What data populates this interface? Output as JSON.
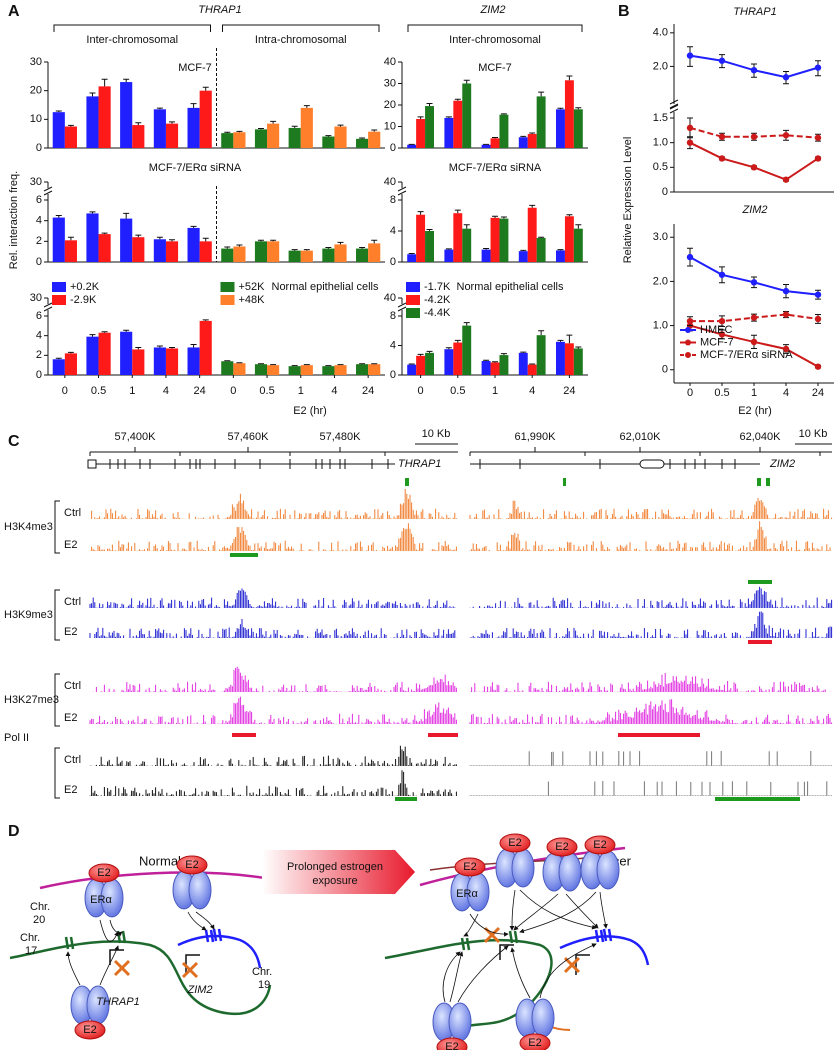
{
  "panel_labels": [
    "A",
    "B",
    "C",
    "D"
  ],
  "chart_data": [
    {
      "type": "bar",
      "header": "THRAP1",
      "groups": [
        "Inter-chromosomal",
        "Intra-chromosomal"
      ],
      "title": "MCF-7",
      "ylim": [
        0,
        30
      ],
      "yticks": [
        0,
        10,
        20,
        30
      ],
      "series": [
        {
          "color": "#1f1fff",
          "values": [
            12.5,
            18,
            23,
            13.5,
            14,
            null,
            null,
            null,
            null,
            null
          ],
          "errors": [
            0.4,
            1.2,
            1,
            0.4,
            1.5,
            null,
            null,
            null,
            null,
            null
          ]
        },
        {
          "color": "#ff1a1a",
          "values": [
            7.5,
            21.5,
            8,
            8.5,
            20,
            null,
            null,
            null,
            null,
            null
          ],
          "errors": [
            0.4,
            2.5,
            0.8,
            0.6,
            1.2,
            null,
            null,
            null,
            null,
            null
          ]
        },
        {
          "color": "#1e7a1e",
          "values": [
            null,
            null,
            null,
            null,
            null,
            5.2,
            6.5,
            7,
            4,
            3.2
          ],
          "errors": [
            null,
            null,
            null,
            null,
            null,
            0.3,
            0.3,
            0.6,
            0.3,
            0.3
          ]
        },
        {
          "color": "#ff7f2a",
          "values": [
            null,
            null,
            null,
            null,
            null,
            5.5,
            8.5,
            14,
            7.5,
            5.7
          ],
          "errors": [
            null,
            null,
            null,
            null,
            null,
            0.3,
            0.8,
            0.8,
            0.5,
            0.6
          ]
        }
      ]
    },
    {
      "type": "bar",
      "title": "MCF-7/ERα siRNA",
      "ylabel": "Rel. interaction freq.",
      "ylim": [
        0,
        6
      ],
      "yticks": [
        0,
        2,
        4,
        6
      ],
      "break_ticks": [
        30
      ],
      "series": [
        {
          "color": "#1f1fff",
          "values": [
            4.3,
            4.7,
            4.2,
            2.2,
            3.3,
            null,
            null,
            null,
            null,
            null
          ],
          "errors": [
            0.2,
            0.15,
            0.5,
            0.2,
            0.15,
            null,
            null,
            null,
            null,
            null
          ]
        },
        {
          "color": "#ff1a1a",
          "values": [
            2.1,
            2.7,
            2.4,
            2.0,
            2.0,
            null,
            null,
            null,
            null,
            null
          ],
          "errors": [
            0.3,
            0.1,
            0.2,
            0.15,
            0.3,
            null,
            null,
            null,
            null,
            null
          ]
        },
        {
          "color": "#1e7a1e",
          "values": [
            null,
            null,
            null,
            null,
            null,
            1.3,
            2.0,
            1.1,
            1.3,
            1.3
          ],
          "errors": [
            null,
            null,
            null,
            null,
            null,
            0.15,
            0.1,
            0.1,
            0.1,
            0.1
          ]
        },
        {
          "color": "#ff7f2a",
          "values": [
            null,
            null,
            null,
            null,
            null,
            1.5,
            2.0,
            1.1,
            1.7,
            1.8
          ],
          "errors": [
            null,
            null,
            null,
            null,
            null,
            0.15,
            0.1,
            0.1,
            0.2,
            0.3
          ]
        }
      ]
    },
    {
      "type": "bar",
      "title": "Normal epithelial cells",
      "xlabel": "E2 (hr)",
      "categories": [
        "0",
        "0.5",
        "1",
        "4",
        "24",
        "0",
        "0.5",
        "1",
        "4",
        "24"
      ],
      "ylim": [
        0,
        6
      ],
      "yticks": [
        0,
        2,
        4,
        6
      ],
      "break_ticks": [
        30
      ],
      "series": [
        {
          "name": "+0.2K",
          "color": "#1f1fff",
          "values": [
            1.6,
            3.9,
            4.4,
            2.8,
            2.8,
            null,
            null,
            null,
            null,
            null
          ],
          "errors": [
            0.1,
            0.2,
            0.15,
            0.15,
            0.3,
            null,
            null,
            null,
            null,
            null
          ]
        },
        {
          "name": "-2.9K",
          "color": "#ff1a1a",
          "values": [
            2.2,
            4.3,
            2.6,
            2.7,
            5.5,
            null,
            null,
            null,
            null,
            null
          ],
          "errors": [
            0.1,
            0.1,
            0.2,
            0.1,
            0.1,
            null,
            null,
            null,
            null,
            null
          ]
        },
        {
          "name": "+52K",
          "color": "#1e7a1e",
          "values": [
            null,
            null,
            null,
            null,
            null,
            1.4,
            1.1,
            0.9,
            0.9,
            1.1
          ],
          "errors": [
            null,
            null,
            null,
            null,
            null,
            0.05,
            0.05,
            0.05,
            0.05,
            0.05
          ]
        },
        {
          "name": "+48K",
          "color": "#ff7f2a",
          "values": [
            null,
            null,
            null,
            null,
            null,
            1.2,
            1.0,
            1.0,
            1.0,
            1.1
          ],
          "errors": [
            null,
            null,
            null,
            null,
            null,
            0.05,
            0.05,
            0.05,
            0.05,
            0.05
          ]
        }
      ]
    },
    {
      "type": "bar",
      "header": "ZIM2",
      "groups": [
        "Inter-chromosomal"
      ],
      "title": "MCF-7",
      "ylim": [
        0,
        40
      ],
      "yticks": [
        0,
        10,
        20,
        30,
        40
      ],
      "series": [
        {
          "color": "#1f1fff",
          "values": [
            1.5,
            14,
            1.5,
            5,
            18
          ],
          "errors": [
            0.2,
            0.5,
            0.2,
            0.4,
            0.5
          ]
        },
        {
          "color": "#ff1a1a",
          "values": [
            13.5,
            22,
            4.5,
            6.5,
            31.5
          ],
          "errors": [
            1,
            0.7,
            0.4,
            0.5,
            2
          ]
        },
        {
          "color": "#1e7a1e",
          "values": [
            19.5,
            30,
            15.5,
            24,
            18
          ],
          "errors": [
            1.2,
            1.5,
            0.4,
            2,
            0.7
          ]
        }
      ]
    },
    {
      "type": "bar",
      "title": "MCF-7/ERα siRNA",
      "ylim": [
        0,
        8
      ],
      "yticks": [
        0,
        4,
        8
      ],
      "break_ticks": [
        40
      ],
      "series": [
        {
          "color": "#1f1fff",
          "values": [
            1,
            1.6,
            1.6,
            1.4,
            1.5
          ],
          "errors": [
            0.1,
            0.1,
            0.15,
            0.1,
            0.1
          ]
        },
        {
          "color": "#ff1a1a",
          "values": [
            6.1,
            6.3,
            5.7,
            7.0,
            5.9
          ],
          "errors": [
            0.4,
            0.4,
            0.2,
            0.3,
            0.2
          ]
        },
        {
          "color": "#1e7a1e",
          "values": [
            4.0,
            4.3,
            5.6,
            3.1,
            4.3
          ],
          "errors": [
            0.2,
            0.5,
            0.2,
            0.1,
            0.5
          ]
        }
      ]
    },
    {
      "type": "bar",
      "title": "Normal epithelial cells",
      "categories": [
        "0",
        "0.5",
        "1",
        "4",
        "24"
      ],
      "ylim": [
        0,
        8
      ],
      "yticks": [
        0,
        4,
        8
      ],
      "break_ticks": [
        40
      ],
      "series": [
        {
          "name": "-1.7K",
          "color": "#1f1fff",
          "values": [
            1.4,
            3.5,
            1.9,
            3.0,
            4.5
          ],
          "errors": [
            0.1,
            0.2,
            0.1,
            0.1,
            0.2
          ]
        },
        {
          "name": "-4.2K",
          "color": "#ff1a1a",
          "values": [
            2.6,
            4.4,
            1.7,
            1.4,
            4.3
          ],
          "errors": [
            0.2,
            0.3,
            0.1,
            0.1,
            1.1
          ]
        },
        {
          "name": "-4.4K",
          "color": "#1e7a1e",
          "values": [
            3.0,
            6.7,
            2.7,
            5.4,
            3.6
          ],
          "errors": [
            0.2,
            0.4,
            0.2,
            0.6,
            0.2
          ]
        }
      ]
    },
    {
      "type": "line",
      "title": "THRAP1",
      "ylabel": "Relative Expression Level",
      "ylim": [
        0,
        1.5
      ],
      "yticks": [
        0,
        0.5,
        {
          "value": 1,
          "label": "1.0"
        },
        1.5
      ],
      "y2lim": [
        1.0,
        4.8
      ],
      "y2ticks": [
        {
          "value": 2,
          "label": "2.0"
        },
        {
          "value": 4,
          "label": "4.0"
        }
      ],
      "y2log": true,
      "series": [
        {
          "color": "#1f1fff",
          "axis": "y2",
          "values": [
            2.5,
            2.25,
            1.85,
            1.6,
            1.95
          ],
          "errors": [
            0.5,
            0.3,
            0.25,
            0.2,
            0.3
          ]
        },
        {
          "color": "#cc1a1a",
          "values": [
            1.0,
            0.68,
            0.5,
            0.25,
            0.68
          ],
          "errors": [
            0.12,
            0.03,
            0.03,
            0.03,
            0.03
          ]
        },
        {
          "color": "#cc1a1a",
          "dash": true,
          "values": [
            1.3,
            1.12,
            1.12,
            1.15,
            1.1
          ],
          "errors": [
            0.2,
            0.07,
            0.07,
            0.1,
            0.07
          ]
        }
      ]
    },
    {
      "type": "line",
      "title": "ZIM2",
      "xlabel": "E2 (hr)",
      "categories": [
        "0",
        "0.5",
        "1",
        "4",
        "24"
      ],
      "ylim": [
        -0.3,
        3.3
      ],
      "yticks": [
        0,
        {
          "value": 1,
          "label": "1.0"
        },
        {
          "value": 2,
          "label": "2.0"
        },
        {
          "value": 3,
          "label": "3.0"
        }
      ],
      "series": [
        {
          "name": "HMEC",
          "color": "#1f1fff",
          "values": [
            2.55,
            2.15,
            1.98,
            1.78,
            1.7
          ],
          "errors": [
            0.2,
            0.18,
            0.12,
            0.15,
            0.1
          ]
        },
        {
          "name": "MCF-7",
          "color": "#cc1a1a",
          "values": [
            1.0,
            0.8,
            0.63,
            0.47,
            0.07
          ],
          "errors": [
            0.12,
            0.1,
            0.15,
            0.1,
            0.03
          ]
        },
        {
          "name": "MCF-7/ERα siRNA",
          "color": "#cc1a1a",
          "dash": true,
          "values": [
            1.1,
            1.1,
            1.18,
            1.25,
            1.15
          ],
          "errors": [
            0.1,
            0.12,
            0.08,
            0.07,
            0.1
          ]
        }
      ]
    }
  ],
  "genome_tracks": {
    "left": {
      "coords": [
        "57,400K",
        "57,460K",
        "57,480K"
      ],
      "scale": "10 Kb",
      "gene": "THRAP1"
    },
    "right": {
      "coords": [
        "61,990K",
        "62,010K",
        "62,040K"
      ],
      "scale": "10 Kb",
      "gene": "ZIM2"
    },
    "marks": [
      "H3K4me3",
      "H3K9me3",
      "H3K27me3",
      "Pol II"
    ],
    "conditions": [
      "Ctrl",
      "E2"
    ]
  },
  "diagram": {
    "normal": "Normal",
    "cancer": "Cancer",
    "e2": "E2",
    "er": "ERα",
    "chr20": [
      "Chr.",
      "20"
    ],
    "chr17": [
      "Chr.",
      "17"
    ],
    "chr19": [
      "Chr.",
      "19"
    ],
    "thrap1": "THRAP1",
    "zim2": "ZIM2",
    "arrow": [
      "Prolonged estrogen",
      "exposure"
    ]
  }
}
